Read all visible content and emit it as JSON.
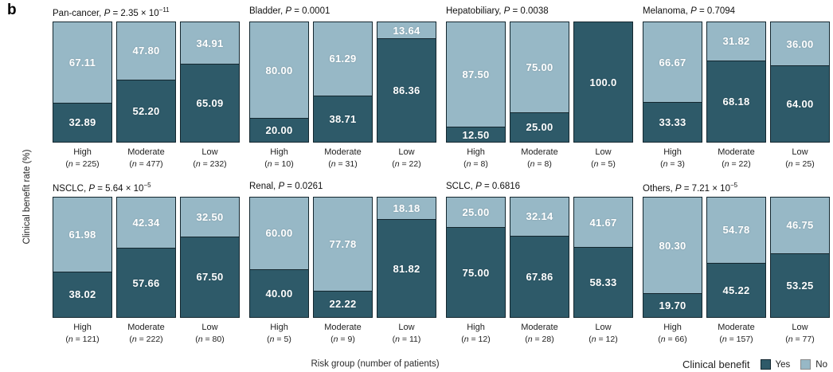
{
  "panel_label": "b",
  "ylabel": "Clinical benefit rate (%)",
  "xlabel": "Risk group (number of patients)",
  "p_symbol": "P",
  "colors": {
    "yes": "#2e5a69",
    "no": "#97b8c6",
    "bar_border": "#14272f"
  },
  "legend": {
    "title": "Clinical benefit",
    "items": [
      {
        "label": "Yes",
        "color": "#2e5a69"
      },
      {
        "label": "No",
        "color": "#97b8c6"
      }
    ]
  },
  "chart_data": {
    "type": "bar",
    "stacked": true,
    "units": "percent",
    "ylim": [
      0,
      100
    ],
    "categories": [
      "High",
      "Moderate",
      "Low"
    ],
    "series_names": [
      "Yes",
      "No"
    ],
    "legend_position": "bottom-right",
    "subplots": [
      {
        "cancer": "Pan-cancer",
        "p_text": "2.35 × 10",
        "p_exp": "−11",
        "bars": [
          {
            "risk": "High",
            "n": "225",
            "no_pct": 67.11,
            "no_label": "67.11",
            "yes_pct": 32.89,
            "yes_label": "32.89"
          },
          {
            "risk": "Moderate",
            "n": "477",
            "no_pct": 47.8,
            "no_label": "47.80",
            "yes_pct": 52.2,
            "yes_label": "52.20"
          },
          {
            "risk": "Low",
            "n": "232",
            "no_pct": 34.91,
            "no_label": "34.91",
            "yes_pct": 65.09,
            "yes_label": "65.09"
          }
        ]
      },
      {
        "cancer": "Bladder",
        "p_text": "0.0001",
        "p_exp": null,
        "bars": [
          {
            "risk": "High",
            "n": "10",
            "no_pct": 80.0,
            "no_label": "80.00",
            "yes_pct": 20.0,
            "yes_label": "20.00"
          },
          {
            "risk": "Moderate",
            "n": "31",
            "no_pct": 61.29,
            "no_label": "61.29",
            "yes_pct": 38.71,
            "yes_label": "38.71"
          },
          {
            "risk": "Low",
            "n": "22",
            "no_pct": 13.64,
            "no_label": "13.64",
            "yes_pct": 86.36,
            "yes_label": "86.36"
          }
        ]
      },
      {
        "cancer": "Hepatobiliary",
        "p_text": "0.0038",
        "p_exp": null,
        "bars": [
          {
            "risk": "High",
            "n": "8",
            "no_pct": 87.5,
            "no_label": "87.50",
            "yes_pct": 12.5,
            "yes_label": "12.50"
          },
          {
            "risk": "Moderate",
            "n": "8",
            "no_pct": 75.0,
            "no_label": "75.00",
            "yes_pct": 25.0,
            "yes_label": "25.00"
          },
          {
            "risk": "Low",
            "n": "5",
            "no_pct": 0,
            "no_label": null,
            "yes_pct": 100,
            "yes_label": "100.0"
          }
        ]
      },
      {
        "cancer": "Melanoma",
        "p_text": "0.7094",
        "p_exp": null,
        "bars": [
          {
            "risk": "High",
            "n": "3",
            "no_pct": 66.67,
            "no_label": "66.67",
            "yes_pct": 33.33,
            "yes_label": "33.33"
          },
          {
            "risk": "Moderate",
            "n": "22",
            "no_pct": 31.82,
            "no_label": "31.82",
            "yes_pct": 68.18,
            "yes_label": "68.18"
          },
          {
            "risk": "Low",
            "n": "25",
            "no_pct": 36.0,
            "no_label": "36.00",
            "yes_pct": 64.0,
            "yes_label": "64.00"
          }
        ]
      },
      {
        "cancer": "NSCLC",
        "p_text": "5.64 × 10",
        "p_exp": "−5",
        "bars": [
          {
            "risk": "High",
            "n": "121",
            "no_pct": 61.98,
            "no_label": "61.98",
            "yes_pct": 38.02,
            "yes_label": "38.02"
          },
          {
            "risk": "Moderate",
            "n": "222",
            "no_pct": 42.34,
            "no_label": "42.34",
            "yes_pct": 57.66,
            "yes_label": "57.66"
          },
          {
            "risk": "Low",
            "n": "80",
            "no_pct": 32.5,
            "no_label": "32.50",
            "yes_pct": 67.5,
            "yes_label": "67.50"
          }
        ]
      },
      {
        "cancer": "Renal",
        "p_text": "0.0261",
        "p_exp": null,
        "bars": [
          {
            "risk": "High",
            "n": "5",
            "no_pct": 60.0,
            "no_label": "60.00",
            "yes_pct": 40.0,
            "yes_label": "40.00"
          },
          {
            "risk": "Moderate",
            "n": "9",
            "no_pct": 77.78,
            "no_label": "77.78",
            "yes_pct": 22.22,
            "yes_label": "22.22"
          },
          {
            "risk": "Low",
            "n": "11",
            "no_pct": 18.18,
            "no_label": "18.18",
            "yes_pct": 81.82,
            "yes_label": "81.82"
          }
        ]
      },
      {
        "cancer": "SCLC",
        "p_text": "0.6816",
        "p_exp": null,
        "bars": [
          {
            "risk": "High",
            "n": "12",
            "no_pct": 25.0,
            "no_label": "25.00",
            "yes_pct": 75.0,
            "yes_label": "75.00"
          },
          {
            "risk": "Moderate",
            "n": "28",
            "no_pct": 32.14,
            "no_label": "32.14",
            "yes_pct": 67.86,
            "yes_label": "67.86"
          },
          {
            "risk": "Low",
            "n": "12",
            "no_pct": 41.67,
            "no_label": "41.67",
            "yes_pct": 58.33,
            "yes_label": "58.33"
          }
        ]
      },
      {
        "cancer": "Others",
        "p_text": "7.21 × 10",
        "p_exp": "−5",
        "bars": [
          {
            "risk": "High",
            "n": "66",
            "no_pct": 80.3,
            "no_label": "80.30",
            "yes_pct": 19.7,
            "yes_label": "19.70"
          },
          {
            "risk": "Moderate",
            "n": "157",
            "no_pct": 54.78,
            "no_label": "54.78",
            "yes_pct": 45.22,
            "yes_label": "45.22"
          },
          {
            "risk": "Low",
            "n": "77",
            "no_pct": 46.75,
            "no_label": "46.75",
            "yes_pct": 53.25,
            "yes_label": "53.25"
          }
        ]
      }
    ]
  }
}
